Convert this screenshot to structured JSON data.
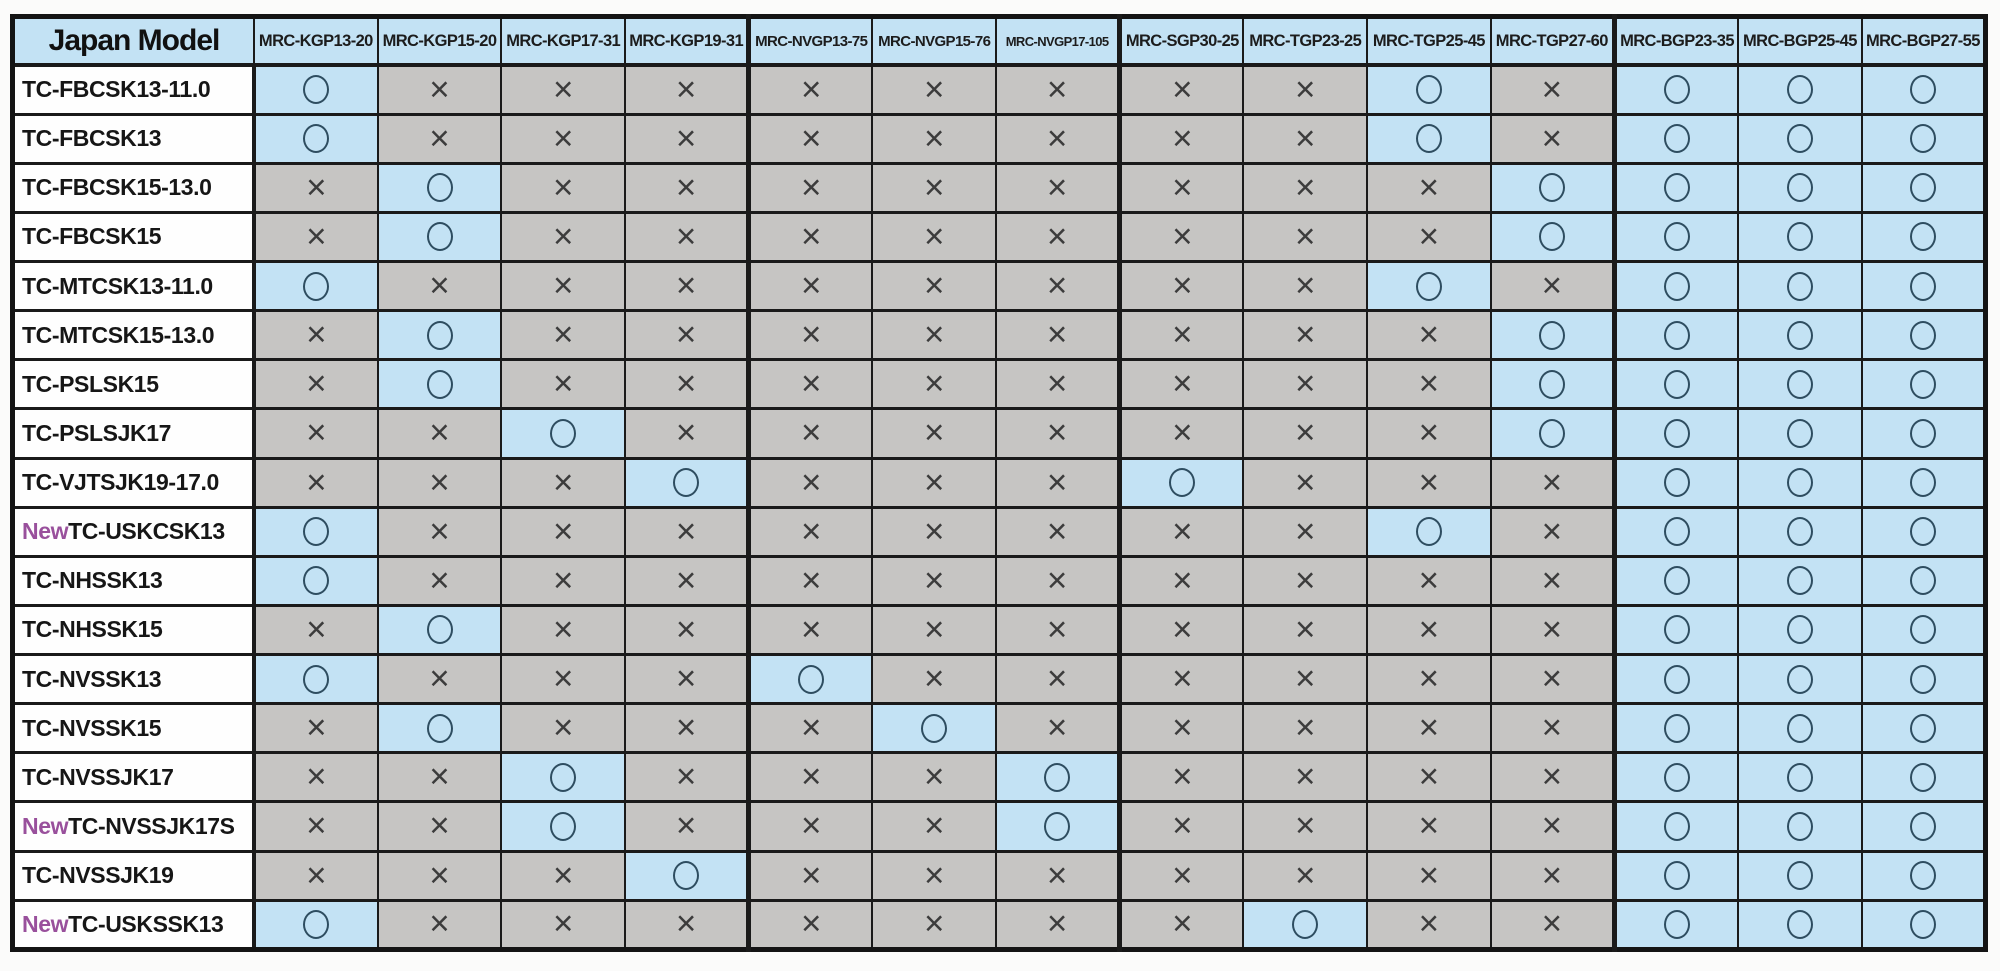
{
  "table": {
    "corner_label": "Japan Model",
    "new_label": "New",
    "symbols": {
      "compatible": "○",
      "incompatible": "×"
    },
    "column_group_starts": [
      4,
      7,
      11
    ],
    "columns": [
      "MRC-KGP13-20",
      "MRC-KGP15-20",
      "MRC-KGP17-31",
      "MRC-KGP19-31",
      "MRC-NVGP13-75",
      "MRC-NVGP15-76",
      "MRC-NVGP17-105",
      "MRC-SGP30-25",
      "MRC-TGP23-25",
      "MRC-TGP25-45",
      "MRC-TGP27-60",
      "MRC-BGP23-35",
      "MRC-BGP25-45",
      "MRC-BGP27-55"
    ],
    "rows": [
      {
        "is_new": false,
        "model": "TC-FBCSK13-11.0",
        "cells": [
          "O",
          "X",
          "X",
          "X",
          "X",
          "X",
          "X",
          "X",
          "X",
          "O",
          "X",
          "O",
          "O",
          "O"
        ]
      },
      {
        "is_new": false,
        "model": "TC-FBCSK13",
        "cells": [
          "O",
          "X",
          "X",
          "X",
          "X",
          "X",
          "X",
          "X",
          "X",
          "O",
          "X",
          "O",
          "O",
          "O"
        ]
      },
      {
        "is_new": false,
        "model": "TC-FBCSK15-13.0",
        "cells": [
          "X",
          "O",
          "X",
          "X",
          "X",
          "X",
          "X",
          "X",
          "X",
          "X",
          "O",
          "O",
          "O",
          "O"
        ]
      },
      {
        "is_new": false,
        "model": "TC-FBCSK15",
        "cells": [
          "X",
          "O",
          "X",
          "X",
          "X",
          "X",
          "X",
          "X",
          "X",
          "X",
          "O",
          "O",
          "O",
          "O"
        ]
      },
      {
        "is_new": false,
        "model": "TC-MTCSK13-11.0",
        "cells": [
          "O",
          "X",
          "X",
          "X",
          "X",
          "X",
          "X",
          "X",
          "X",
          "O",
          "X",
          "O",
          "O",
          "O"
        ]
      },
      {
        "is_new": false,
        "model": "TC-MTCSK15-13.0",
        "cells": [
          "X",
          "O",
          "X",
          "X",
          "X",
          "X",
          "X",
          "X",
          "X",
          "X",
          "O",
          "O",
          "O",
          "O"
        ]
      },
      {
        "is_new": false,
        "model": "TC-PSLSK15",
        "cells": [
          "X",
          "O",
          "X",
          "X",
          "X",
          "X",
          "X",
          "X",
          "X",
          "X",
          "O",
          "O",
          "O",
          "O"
        ]
      },
      {
        "is_new": false,
        "model": "TC-PSLSJK17",
        "cells": [
          "X",
          "X",
          "O",
          "X",
          "X",
          "X",
          "X",
          "X",
          "X",
          "X",
          "O",
          "O",
          "O",
          "O"
        ]
      },
      {
        "is_new": false,
        "model": "TC-VJTSJK19-17.0",
        "cells": [
          "X",
          "X",
          "X",
          "O",
          "X",
          "X",
          "X",
          "O",
          "X",
          "X",
          "X",
          "O",
          "O",
          "O"
        ]
      },
      {
        "is_new": true,
        "model": "TC-USKCSK13",
        "cells": [
          "O",
          "X",
          "X",
          "X",
          "X",
          "X",
          "X",
          "X",
          "X",
          "O",
          "X",
          "O",
          "O",
          "O"
        ]
      },
      {
        "is_new": false,
        "model": "TC-NHSSK13",
        "cells": [
          "O",
          "X",
          "X",
          "X",
          "X",
          "X",
          "X",
          "X",
          "X",
          "X",
          "X",
          "O",
          "O",
          "O"
        ]
      },
      {
        "is_new": false,
        "model": "TC-NHSSK15",
        "cells": [
          "X",
          "O",
          "X",
          "X",
          "X",
          "X",
          "X",
          "X",
          "X",
          "X",
          "X",
          "O",
          "O",
          "O"
        ]
      },
      {
        "is_new": false,
        "model": "TC-NVSSK13",
        "cells": [
          "O",
          "X",
          "X",
          "X",
          "O",
          "X",
          "X",
          "X",
          "X",
          "X",
          "X",
          "O",
          "O",
          "O"
        ]
      },
      {
        "is_new": false,
        "model": "TC-NVSSK15",
        "cells": [
          "X",
          "O",
          "X",
          "X",
          "X",
          "O",
          "X",
          "X",
          "X",
          "X",
          "X",
          "O",
          "O",
          "O"
        ]
      },
      {
        "is_new": false,
        "model": "TC-NVSSJK17",
        "cells": [
          "X",
          "X",
          "O",
          "X",
          "X",
          "X",
          "O",
          "X",
          "X",
          "X",
          "X",
          "O",
          "O",
          "O"
        ]
      },
      {
        "is_new": true,
        "model": "TC-NVSSJK17S",
        "cells": [
          "X",
          "X",
          "O",
          "X",
          "X",
          "X",
          "O",
          "X",
          "X",
          "X",
          "X",
          "O",
          "O",
          "O"
        ]
      },
      {
        "is_new": false,
        "model": "TC-NVSSJK19",
        "cells": [
          "X",
          "X",
          "X",
          "O",
          "X",
          "X",
          "X",
          "X",
          "X",
          "X",
          "X",
          "O",
          "O",
          "O"
        ]
      },
      {
        "is_new": true,
        "model": "TC-USKSSK13",
        "cells": [
          "O",
          "X",
          "X",
          "X",
          "X",
          "X",
          "X",
          "X",
          "O",
          "X",
          "X",
          "O",
          "O",
          "O"
        ]
      }
    ],
    "colors": {
      "compatible_bg": "#C3E2F4",
      "incompatible_bg": "#C6C5C3",
      "header_bg": "#C3E2F4",
      "new_label_color": "#99509C",
      "circle_stroke": "#2E4D60",
      "cross_color": "#3C3C3C",
      "border": "#1A1A1A"
    }
  }
}
